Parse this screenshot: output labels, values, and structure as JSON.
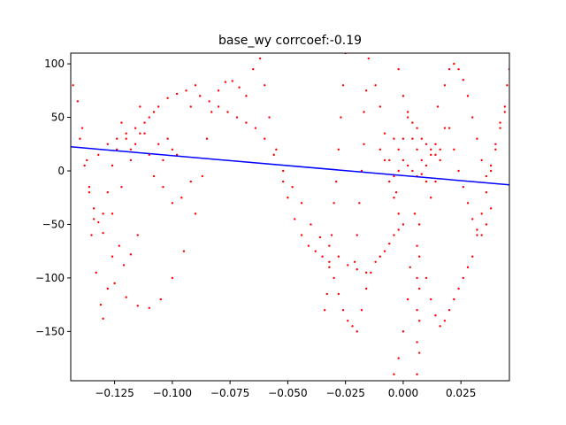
{
  "chart_data": {
    "type": "scatter",
    "title": "base_wy corrcoef:-0.19",
    "xlabel": "",
    "ylabel": "",
    "xlim": [
      -0.144,
      0.046
    ],
    "ylim": [
      -196,
      110
    ],
    "x_ticks": [
      -0.125,
      -0.1,
      -0.075,
      -0.05,
      -0.025,
      0.0,
      0.025
    ],
    "x_tick_labels": [
      "−0.125",
      "−0.100",
      "−0.075",
      "−0.050",
      "−0.025",
      "0.000",
      "0.025"
    ],
    "y_ticks": [
      -150,
      -100,
      -50,
      0,
      50,
      100
    ],
    "y_tick_labels": [
      "−150",
      "−100",
      "−50",
      "0",
      "50",
      "100"
    ],
    "grid": false,
    "legend": "none",
    "series": [
      {
        "kind": "scatter",
        "color": "#ff0000",
        "marker": "dot",
        "points": [
          [
            -0.143,
            80
          ],
          [
            -0.141,
            65
          ],
          [
            -0.139,
            40
          ],
          [
            -0.137,
            10
          ],
          [
            -0.136,
            -15
          ],
          [
            -0.134,
            -35
          ],
          [
            -0.132,
            -48
          ],
          [
            -0.13,
            -40
          ],
          [
            -0.128,
            -20
          ],
          [
            -0.126,
            5
          ],
          [
            -0.124,
            30
          ],
          [
            -0.122,
            45
          ],
          [
            -0.12,
            30
          ],
          [
            -0.118,
            20
          ],
          [
            -0.116,
            40
          ],
          [
            -0.114,
            60
          ],
          [
            -0.112,
            35
          ],
          [
            -0.11,
            15
          ],
          [
            -0.108,
            55
          ],
          [
            -0.106,
            25
          ],
          [
            -0.104,
            10
          ],
          [
            -0.102,
            30
          ],
          [
            -0.1,
            20
          ],
          [
            -0.098,
            15
          ],
          [
            -0.132,
            15
          ],
          [
            -0.128,
            25
          ],
          [
            -0.124,
            20
          ],
          [
            -0.12,
            35
          ],
          [
            -0.116,
            25
          ],
          [
            -0.112,
            45
          ],
          [
            -0.135,
            -60
          ],
          [
            -0.133,
            -95
          ],
          [
            -0.131,
            -125
          ],
          [
            -0.13,
            -138
          ],
          [
            -0.128,
            -110
          ],
          [
            -0.126,
            -80
          ],
          [
            -0.123,
            -70
          ],
          [
            -0.121,
            -88
          ],
          [
            -0.118,
            -78
          ],
          [
            -0.115,
            -60
          ],
          [
            -0.125,
            -105
          ],
          [
            -0.12,
            -118
          ],
          [
            -0.115,
            -126
          ],
          [
            -0.11,
            -128
          ],
          [
            -0.105,
            -120
          ],
          [
            -0.1,
            -100
          ],
          [
            -0.095,
            -75
          ],
          [
            -0.09,
            -40
          ],
          [
            -0.087,
            -5
          ],
          [
            -0.085,
            30
          ],
          [
            -0.083,
            55
          ],
          [
            -0.08,
            75
          ],
          [
            -0.077,
            83
          ],
          [
            -0.074,
            84
          ],
          [
            -0.071,
            78
          ],
          [
            -0.068,
            70
          ],
          [
            -0.065,
            95
          ],
          [
            -0.062,
            105
          ],
          [
            -0.06,
            80
          ],
          [
            -0.058,
            50
          ],
          [
            -0.055,
            20
          ],
          [
            -0.052,
            -10
          ],
          [
            -0.05,
            -25
          ],
          [
            -0.047,
            -45
          ],
          [
            -0.044,
            -60
          ],
          [
            -0.041,
            -70
          ],
          [
            -0.038,
            -75
          ],
          [
            -0.035,
            -80
          ],
          [
            -0.032,
            -85
          ],
          [
            -0.03,
            -100
          ],
          [
            -0.028,
            -115
          ],
          [
            -0.026,
            -130
          ],
          [
            -0.024,
            -140
          ],
          [
            -0.022,
            -145
          ],
          [
            -0.02,
            -150
          ],
          [
            -0.018,
            -130
          ],
          [
            -0.016,
            -110
          ],
          [
            -0.014,
            -95
          ],
          [
            -0.012,
            -85
          ],
          [
            -0.01,
            -80
          ],
          [
            -0.008,
            -75
          ],
          [
            -0.006,
            -68
          ],
          [
            -0.004,
            -60
          ],
          [
            -0.002,
            -55
          ],
          [
            0.0,
            -50
          ],
          [
            -0.092,
            60
          ],
          [
            -0.088,
            70
          ],
          [
            -0.084,
            65
          ],
          [
            -0.08,
            60
          ],
          [
            -0.076,
            55
          ],
          [
            -0.072,
            50
          ],
          [
            -0.068,
            45
          ],
          [
            -0.064,
            40
          ],
          [
            -0.06,
            30
          ],
          [
            -0.056,
            15
          ],
          [
            -0.052,
            0
          ],
          [
            -0.048,
            -15
          ],
          [
            -0.044,
            -30
          ],
          [
            -0.04,
            -50
          ],
          [
            -0.036,
            -62
          ],
          [
            -0.032,
            -70
          ],
          [
            -0.028,
            -80
          ],
          [
            -0.024,
            -88
          ],
          [
            -0.02,
            -92
          ],
          [
            -0.016,
            -95
          ],
          [
            -0.025,
            110
          ],
          [
            -0.026,
            80
          ],
          [
            -0.027,
            50
          ],
          [
            -0.028,
            20
          ],
          [
            -0.029,
            -10
          ],
          [
            -0.03,
            -30
          ],
          [
            -0.031,
            -60
          ],
          [
            -0.032,
            -90
          ],
          [
            -0.033,
            -115
          ],
          [
            -0.034,
            -130
          ],
          [
            -0.017,
            25
          ],
          [
            -0.018,
            0
          ],
          [
            -0.019,
            -30
          ],
          [
            -0.02,
            -60
          ],
          [
            -0.021,
            -85
          ],
          [
            -0.015,
            105
          ],
          [
            -0.016,
            75
          ],
          [
            -0.017,
            55
          ],
          [
            -0.012,
            80
          ],
          [
            -0.01,
            60
          ],
          [
            -0.008,
            35
          ],
          [
            -0.006,
            10
          ],
          [
            -0.004,
            -5
          ],
          [
            -0.003,
            -20
          ],
          [
            -0.002,
            -40
          ],
          [
            -0.002,
            95
          ],
          [
            0.0,
            70
          ],
          [
            0.002,
            55
          ],
          [
            0.004,
            45
          ],
          [
            0.006,
            40
          ],
          [
            0.008,
            30
          ],
          [
            0.01,
            25
          ],
          [
            0.012,
            20
          ],
          [
            0.014,
            15
          ],
          [
            0.016,
            10
          ],
          [
            -0.004,
            30
          ],
          [
            -0.002,
            20
          ],
          [
            0.0,
            10
          ],
          [
            0.002,
            5
          ],
          [
            0.004,
            0
          ],
          [
            0.006,
            -5
          ],
          [
            0.008,
            -3
          ],
          [
            0.01,
            5
          ],
          [
            0.012,
            15
          ],
          [
            0.014,
            25
          ],
          [
            0.005,
            -40
          ],
          [
            0.006,
            -70
          ],
          [
            0.006,
            -100
          ],
          [
            0.006,
            -130
          ],
          [
            0.006,
            -160
          ],
          [
            0.006,
            -190
          ],
          [
            0.007,
            -50
          ],
          [
            0.007,
            -80
          ],
          [
            0.007,
            -110
          ],
          [
            0.007,
            -140
          ],
          [
            0.007,
            -170
          ],
          [
            0.003,
            -90
          ],
          [
            0.002,
            -120
          ],
          [
            0.0,
            -150
          ],
          [
            -0.002,
            -175
          ],
          [
            -0.004,
            -190
          ],
          [
            0.01,
            -100
          ],
          [
            0.012,
            -120
          ],
          [
            0.014,
            -135
          ],
          [
            0.016,
            -145
          ],
          [
            0.018,
            -140
          ],
          [
            0.02,
            -130
          ],
          [
            0.022,
            -120
          ],
          [
            0.024,
            -110
          ],
          [
            0.026,
            -100
          ],
          [
            0.028,
            -90
          ],
          [
            0.03,
            -80
          ],
          [
            0.032,
            -60
          ],
          [
            0.034,
            -40
          ],
          [
            0.036,
            -20
          ],
          [
            0.038,
            0
          ],
          [
            0.04,
            20
          ],
          [
            0.042,
            40
          ],
          [
            0.044,
            60
          ],
          [
            0.045,
            80
          ],
          [
            0.046,
            95
          ],
          [
            0.015,
            60
          ],
          [
            0.018,
            80
          ],
          [
            0.02,
            95
          ],
          [
            0.022,
            100
          ],
          [
            0.024,
            95
          ],
          [
            0.026,
            85
          ],
          [
            0.028,
            70
          ],
          [
            0.03,
            50
          ],
          [
            0.032,
            30
          ],
          [
            0.034,
            10
          ],
          [
            0.036,
            -5
          ],
          [
            0.038,
            5
          ],
          [
            0.04,
            25
          ],
          [
            0.042,
            45
          ],
          [
            0.044,
            55
          ],
          [
            0.02,
            40
          ],
          [
            0.022,
            20
          ],
          [
            0.024,
            0
          ],
          [
            0.026,
            -15
          ],
          [
            0.028,
            -30
          ],
          [
            0.03,
            -45
          ],
          [
            0.032,
            -55
          ],
          [
            0.034,
            -60
          ],
          [
            0.036,
            -50
          ],
          [
            0.038,
            -35
          ],
          [
            -0.01,
            20
          ],
          [
            -0.008,
            10
          ],
          [
            -0.006,
            -10
          ],
          [
            -0.004,
            -25
          ],
          [
            -0.002,
            0
          ],
          [
            0.0,
            30
          ],
          [
            0.002,
            50
          ],
          [
            0.004,
            30
          ],
          [
            0.006,
            20
          ],
          [
            0.008,
            10
          ],
          [
            0.01,
            -10
          ],
          [
            0.012,
            -25
          ],
          [
            0.014,
            -10
          ],
          [
            0.016,
            20
          ],
          [
            0.018,
            40
          ],
          [
            -0.14,
            30
          ],
          [
            -0.138,
            5
          ],
          [
            -0.136,
            -20
          ],
          [
            -0.134,
            -45
          ],
          [
            -0.13,
            -58
          ],
          [
            -0.126,
            -40
          ],
          [
            -0.122,
            -15
          ],
          [
            -0.118,
            10
          ],
          [
            -0.114,
            35
          ],
          [
            -0.11,
            50
          ],
          [
            -0.106,
            60
          ],
          [
            -0.102,
            68
          ],
          [
            -0.098,
            72
          ],
          [
            -0.094,
            75
          ],
          [
            -0.09,
            80
          ],
          [
            -0.108,
            -5
          ],
          [
            -0.104,
            -15
          ],
          [
            -0.1,
            -30
          ],
          [
            -0.096,
            -25
          ],
          [
            -0.092,
            -10
          ]
        ]
      },
      {
        "kind": "line",
        "color": "#0000ff",
        "points": [
          [
            -0.144,
            22.5
          ],
          [
            0.046,
            -13.0
          ]
        ]
      }
    ]
  }
}
